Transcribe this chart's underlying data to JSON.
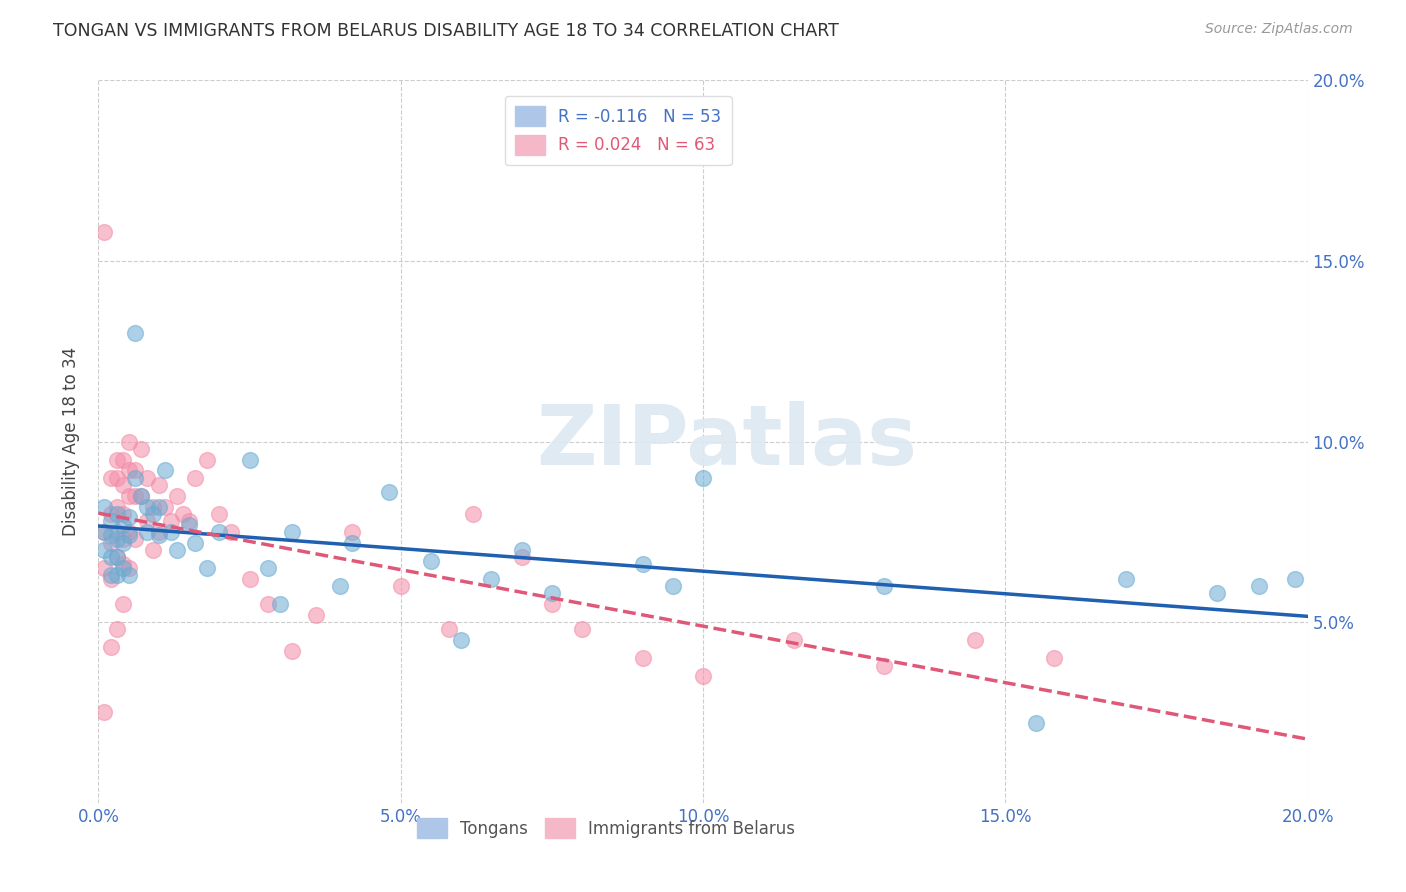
{
  "title": "TONGAN VS IMMIGRANTS FROM BELARUS DISABILITY AGE 18 TO 34 CORRELATION CHART",
  "source": "Source: ZipAtlas.com",
  "ylabel": "Disability Age 18 to 34",
  "xlim": [
    0.0,
    0.2
  ],
  "ylim": [
    0.0,
    0.2
  ],
  "xtick_labels": [
    "0.0%",
    "5.0%",
    "10.0%",
    "15.0%",
    "20.0%"
  ],
  "xtick_vals": [
    0.0,
    0.05,
    0.1,
    0.15,
    0.2
  ],
  "ytick_labels": [
    "5.0%",
    "10.0%",
    "15.0%",
    "20.0%"
  ],
  "ytick_vals": [
    0.05,
    0.1,
    0.15,
    0.2
  ],
  "watermark": "ZIPatlas",
  "tongans_color": "#6aabd2",
  "belarus_color": "#f48ca8",
  "tongans_line_color": "#2060b0",
  "belarus_line_color": "#e05878",
  "tongans_x": [
    0.001,
    0.001,
    0.001,
    0.002,
    0.002,
    0.002,
    0.002,
    0.003,
    0.003,
    0.003,
    0.003,
    0.004,
    0.004,
    0.004,
    0.005,
    0.005,
    0.005,
    0.006,
    0.006,
    0.007,
    0.008,
    0.008,
    0.009,
    0.01,
    0.01,
    0.011,
    0.012,
    0.013,
    0.015,
    0.016,
    0.018,
    0.02,
    0.025,
    0.028,
    0.03,
    0.032,
    0.04,
    0.042,
    0.048,
    0.055,
    0.06,
    0.065,
    0.07,
    0.075,
    0.09,
    0.095,
    0.1,
    0.13,
    0.155,
    0.17,
    0.185,
    0.192,
    0.198
  ],
  "tongans_y": [
    0.082,
    0.075,
    0.07,
    0.078,
    0.074,
    0.068,
    0.063,
    0.08,
    0.073,
    0.068,
    0.063,
    0.077,
    0.072,
    0.065,
    0.079,
    0.074,
    0.063,
    0.13,
    0.09,
    0.085,
    0.082,
    0.075,
    0.08,
    0.082,
    0.074,
    0.092,
    0.075,
    0.07,
    0.077,
    0.072,
    0.065,
    0.075,
    0.095,
    0.065,
    0.055,
    0.075,
    0.06,
    0.072,
    0.086,
    0.067,
    0.045,
    0.062,
    0.07,
    0.058,
    0.066,
    0.06,
    0.09,
    0.06,
    0.022,
    0.062,
    0.058,
    0.06,
    0.062
  ],
  "belarus_x": [
    0.001,
    0.001,
    0.001,
    0.001,
    0.002,
    0.002,
    0.002,
    0.002,
    0.002,
    0.003,
    0.003,
    0.003,
    0.003,
    0.003,
    0.003,
    0.004,
    0.004,
    0.004,
    0.004,
    0.004,
    0.004,
    0.005,
    0.005,
    0.005,
    0.005,
    0.005,
    0.006,
    0.006,
    0.006,
    0.007,
    0.007,
    0.008,
    0.008,
    0.009,
    0.009,
    0.01,
    0.01,
    0.011,
    0.012,
    0.013,
    0.014,
    0.015,
    0.016,
    0.018,
    0.02,
    0.022,
    0.025,
    0.028,
    0.032,
    0.036,
    0.042,
    0.05,
    0.058,
    0.062,
    0.07,
    0.075,
    0.08,
    0.09,
    0.1,
    0.115,
    0.13,
    0.145,
    0.158
  ],
  "belarus_y": [
    0.158,
    0.075,
    0.065,
    0.025,
    0.09,
    0.08,
    0.072,
    0.062,
    0.043,
    0.095,
    0.09,
    0.082,
    0.075,
    0.068,
    0.048,
    0.095,
    0.088,
    0.08,
    0.073,
    0.066,
    0.055,
    0.1,
    0.092,
    0.085,
    0.075,
    0.065,
    0.092,
    0.085,
    0.073,
    0.098,
    0.085,
    0.09,
    0.078,
    0.082,
    0.07,
    0.088,
    0.075,
    0.082,
    0.078,
    0.085,
    0.08,
    0.078,
    0.09,
    0.095,
    0.08,
    0.075,
    0.062,
    0.055,
    0.042,
    0.052,
    0.075,
    0.06,
    0.048,
    0.08,
    0.068,
    0.055,
    0.048,
    0.04,
    0.035,
    0.045,
    0.038,
    0.045,
    0.04
  ],
  "background_color": "#ffffff",
  "grid_color": "#c8c8c8"
}
